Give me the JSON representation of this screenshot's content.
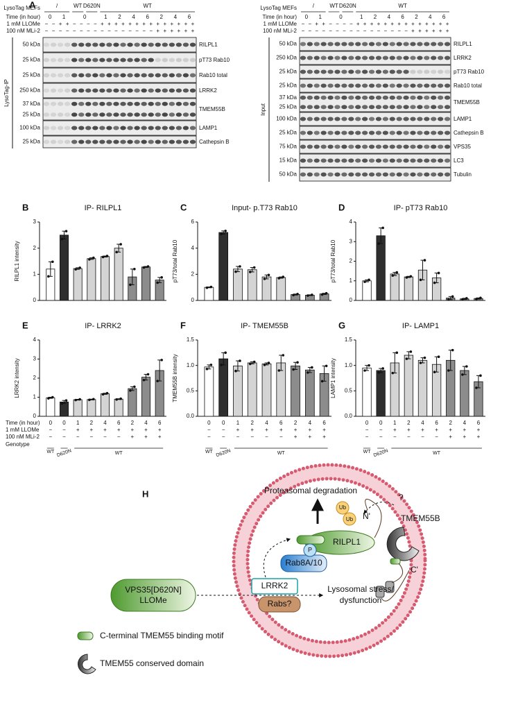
{
  "panel_a": {
    "label": "A",
    "header_labels": [
      "LysoTag MEFs",
      "Time (in hour)",
      "1 mM LLOMe",
      "100 nM MLi-2"
    ],
    "genotypes": [
      "/",
      "WT",
      "D620N",
      "WT"
    ],
    "times": [
      0,
      1,
      0,
      1,
      2,
      4,
      6,
      2,
      4,
      6
    ],
    "llome": [
      "−",
      "−",
      "+",
      "+",
      "−",
      "−",
      "−",
      "−",
      "+",
      "+",
      "+",
      "+",
      "+",
      "+",
      "+",
      "+",
      "+",
      "+",
      "+",
      "+",
      "+",
      "+"
    ],
    "mli2": [
      "−",
      "−",
      "−",
      "−",
      "−",
      "−",
      "−",
      "−",
      "−",
      "−",
      "−",
      "−",
      "−",
      "−",
      "−",
      "−",
      "+",
      "+",
      "+",
      "+",
      "+",
      "+"
    ],
    "left": {
      "side_label": "LysoTag-IP",
      "rows": [
        {
          "kda": [
            "50 kDa"
          ],
          "name": "RILPL1"
        },
        {
          "kda": [
            "25 kDa"
          ],
          "name": "pT73 Rab10"
        },
        {
          "kda": [
            "25 kDa"
          ],
          "name": "Rab10 total"
        },
        {
          "kda": [
            "250 kDa"
          ],
          "name": "LRRK2"
        },
        {
          "kda": [
            "37 kDa",
            "25 kDa"
          ],
          "name": "TMEM55B"
        },
        {
          "kda": [
            "100 kDa"
          ],
          "name": "LAMP1"
        },
        {
          "kda": [
            "25 kDa"
          ],
          "name": "Cathepsin B"
        }
      ]
    },
    "right": {
      "side_label": "Input",
      "rows": [
        {
          "kda": [
            "50 kDa"
          ],
          "name": "RILPL1"
        },
        {
          "kda": [
            "250 kDa"
          ],
          "name": "LRRK2"
        },
        {
          "kda": [
            "25 kDa"
          ],
          "name": "pT73 Rab10"
        },
        {
          "kda": [
            "25 kDa"
          ],
          "name": "Rab10 total"
        },
        {
          "kda": [
            "37 kDa",
            "25 kDa"
          ],
          "name": "TMEM55B"
        },
        {
          "kda": [
            "100 kDa"
          ],
          "name": "LAMP1"
        },
        {
          "kda": [
            "25 kDa"
          ],
          "name": "Cathepsin B"
        },
        {
          "kda": [
            "75 kDa"
          ],
          "name": "VPS35"
        },
        {
          "kda": [
            "15 kDa"
          ],
          "name": "LC3"
        },
        {
          "kda": [
            "50 kDa"
          ],
          "name": "Tubulin"
        }
      ]
    }
  },
  "conditions": {
    "row_labels": [
      "Time (in hour)",
      "1 mM LLOMe",
      "100 nM MLi-2",
      "Genotype"
    ],
    "time": [
      0,
      0,
      1,
      2,
      4,
      6,
      2,
      4,
      6
    ],
    "llome": [
      "−",
      "−",
      "+",
      "+",
      "+",
      "+",
      "+",
      "+",
      "+"
    ],
    "mli2": [
      "−",
      "−",
      "−",
      "−",
      "−",
      "−",
      "+",
      "+",
      "+"
    ],
    "genotype": [
      "WT",
      "D620N",
      "WT"
    ]
  },
  "chart_data": [
    {
      "type": "bar",
      "label": "B",
      "title": "IP- RILPL1",
      "ylabel": "RILPL1 intensity",
      "categories": [
        null,
        null,
        null,
        null,
        null,
        null,
        null,
        null,
        null
      ],
      "values": [
        1.2,
        2.5,
        1.22,
        1.6,
        1.68,
        2.0,
        0.9,
        1.28,
        0.78
      ],
      "errors": [
        0.28,
        0.15,
        0.03,
        0.03,
        0.02,
        0.15,
        0.3,
        0.02,
        0.1
      ],
      "points": [
        [
          0.92,
          1.48
        ],
        [
          2.35,
          2.65
        ],
        [
          1.19,
          1.25
        ],
        [
          1.57,
          1.63
        ],
        [
          1.66,
          1.7
        ],
        [
          1.85,
          2.15
        ],
        [
          0.6,
          1.2
        ],
        [
          1.26,
          1.3
        ],
        [
          0.68,
          0.88
        ]
      ],
      "colors": [
        "#ffffff",
        "#2e2e2e",
        "#d4d4d4",
        "#d4d4d4",
        "#d4d4d4",
        "#d4d4d4",
        "#8c8c8c",
        "#8c8c8c",
        "#8c8c8c"
      ],
      "ylim": [
        0,
        3
      ],
      "yticks": [
        0,
        1,
        2,
        3
      ]
    },
    {
      "type": "bar",
      "label": "C",
      "title": "Input- p.T73 Rab10",
      "ylabel": "pT73/total Rab10",
      "categories": [
        null,
        null,
        null,
        null,
        null,
        null,
        null,
        null,
        null
      ],
      "values": [
        1.0,
        5.2,
        2.4,
        2.35,
        1.8,
        1.75,
        0.45,
        0.4,
        0.5
      ],
      "errors": [
        0.03,
        0.12,
        0.2,
        0.17,
        0.15,
        0.05,
        0.04,
        0.03,
        0.05
      ],
      "points": [
        [
          0.97,
          1.03
        ],
        [
          5.08,
          5.32
        ],
        [
          2.2,
          2.6
        ],
        [
          2.18,
          2.52
        ],
        [
          1.65,
          1.95
        ],
        [
          1.7,
          1.8
        ],
        [
          0.41,
          0.49
        ],
        [
          0.37,
          0.43
        ],
        [
          0.45,
          0.55
        ]
      ],
      "colors": [
        "#ffffff",
        "#2e2e2e",
        "#d4d4d4",
        "#d4d4d4",
        "#d4d4d4",
        "#d4d4d4",
        "#8c8c8c",
        "#8c8c8c",
        "#8c8c8c"
      ],
      "ylim": [
        0,
        6
      ],
      "yticks": [
        0,
        2,
        4,
        6
      ]
    },
    {
      "type": "bar",
      "label": "D",
      "title": "IP- pT73 Rab10",
      "ylabel": "pT73/total Rab10",
      "categories": [
        null,
        null,
        null,
        null,
        null,
        null,
        null,
        null,
        null
      ],
      "values": [
        1.0,
        3.3,
        1.35,
        1.2,
        1.55,
        1.15,
        0.12,
        0.08,
        0.1
      ],
      "errors": [
        0.05,
        0.4,
        0.08,
        0.03,
        0.5,
        0.25,
        0.08,
        0.03,
        0.03
      ],
      "points": [
        [
          0.95,
          1.05
        ],
        [
          2.9,
          3.7
        ],
        [
          1.27,
          1.43
        ],
        [
          1.17,
          1.23
        ],
        [
          1.05,
          2.05
        ],
        [
          0.9,
          1.4
        ],
        [
          0.04,
          0.2
        ],
        [
          0.05,
          0.11
        ],
        [
          0.07,
          0.13
        ]
      ],
      "colors": [
        "#ffffff",
        "#2e2e2e",
        "#d4d4d4",
        "#d4d4d4",
        "#d4d4d4",
        "#d4d4d4",
        "#8c8c8c",
        "#8c8c8c",
        "#8c8c8c"
      ],
      "ylim": [
        0,
        4
      ],
      "yticks": [
        0,
        1,
        2,
        3,
        4
      ]
    },
    {
      "type": "bar",
      "label": "E",
      "title": "IP- LRRK2",
      "ylabel": "LRRK2 intensity",
      "categories": [
        null,
        null,
        null,
        null,
        null,
        null,
        null,
        null,
        null
      ],
      "values": [
        0.97,
        0.75,
        0.87,
        0.88,
        1.18,
        0.9,
        1.45,
        2.05,
        2.4
      ],
      "errors": [
        0.03,
        0.08,
        0.02,
        0.02,
        0.03,
        0.02,
        0.1,
        0.15,
        0.55
      ],
      "points": [
        [
          0.94,
          1.0
        ],
        [
          0.67,
          0.83
        ],
        [
          0.85,
          0.89
        ],
        [
          0.86,
          0.9
        ],
        [
          1.15,
          1.21
        ],
        [
          0.88,
          0.92
        ],
        [
          1.35,
          1.55
        ],
        [
          1.9,
          2.2
        ],
        [
          1.85,
          2.95
        ]
      ],
      "colors": [
        "#ffffff",
        "#2e2e2e",
        "#d4d4d4",
        "#d4d4d4",
        "#d4d4d4",
        "#d4d4d4",
        "#8c8c8c",
        "#8c8c8c",
        "#8c8c8c"
      ],
      "ylim": [
        0,
        4
      ],
      "yticks": [
        0,
        1,
        2,
        3,
        4
      ]
    },
    {
      "type": "bar",
      "label": "F",
      "title": "IP- TMEM55B",
      "ylabel": "TMEM55B intensity",
      "categories": [
        null,
        null,
        null,
        null,
        null,
        null,
        null,
        null,
        null
      ],
      "values": [
        0.97,
        1.13,
        0.99,
        1.05,
        1.03,
        1.05,
        0.99,
        0.91,
        0.84
      ],
      "errors": [
        0.04,
        0.12,
        0.1,
        0.02,
        0.02,
        0.15,
        0.07,
        0.05,
        0.15
      ],
      "points": [
        [
          0.93,
          1.01
        ],
        [
          1.01,
          1.25
        ],
        [
          0.89,
          1.09
        ],
        [
          1.03,
          1.07
        ],
        [
          1.01,
          1.05
        ],
        [
          0.9,
          1.2
        ],
        [
          0.92,
          1.06
        ],
        [
          0.86,
          0.96
        ],
        [
          0.69,
          0.99
        ]
      ],
      "colors": [
        "#ffffff",
        "#2e2e2e",
        "#d4d4d4",
        "#d4d4d4",
        "#d4d4d4",
        "#d4d4d4",
        "#8c8c8c",
        "#8c8c8c",
        "#8c8c8c"
      ],
      "ylim": [
        0,
        1.5
      ],
      "yticks": [
        {
          "value": 0,
          "label": "0.0"
        },
        0.5,
        {
          "value": 1,
          "label": "1.0"
        },
        1.5
      ]
    },
    {
      "type": "bar",
      "label": "G",
      "title": "IP- LAMP1",
      "ylabel": "LAMP1 intensity",
      "categories": [
        null,
        null,
        null,
        null,
        null,
        null,
        null,
        null,
        null
      ],
      "values": [
        0.95,
        0.9,
        1.05,
        1.2,
        1.1,
        1.02,
        1.1,
        0.9,
        0.68
      ],
      "errors": [
        0.05,
        0.04,
        0.2,
        0.07,
        0.05,
        0.15,
        0.2,
        0.08,
        0.12
      ],
      "points": [
        [
          0.9,
          1.0
        ],
        [
          0.86,
          0.94
        ],
        [
          0.85,
          1.25
        ],
        [
          1.13,
          1.27
        ],
        [
          1.05,
          1.15
        ],
        [
          0.87,
          1.17
        ],
        [
          0.9,
          1.3
        ],
        [
          0.82,
          0.98
        ],
        [
          0.56,
          0.8
        ]
      ],
      "colors": [
        "#ffffff",
        "#2e2e2e",
        "#d4d4d4",
        "#d4d4d4",
        "#d4d4d4",
        "#d4d4d4",
        "#8c8c8c",
        "#8c8c8c",
        "#8c8c8c"
      ],
      "ylim": [
        0,
        1.5
      ],
      "yticks": [
        {
          "value": 0,
          "label": "0.0"
        },
        0.5,
        {
          "value": 1,
          "label": "1.0"
        },
        1.5
      ]
    }
  ],
  "panel_h": {
    "label": "H",
    "proteasomal": "Proteasomal degradation",
    "ub": [
      "Ub",
      "Ub"
    ],
    "question": "?",
    "n_term": "N'",
    "tmem55b": "TMEM55B",
    "rilpl1": "RILPL1",
    "phospho": "P",
    "rab": "Rab8A/10",
    "lrrk2": "LRRK2",
    "rabs": "Rabs?",
    "c_term": "C'",
    "trigger": [
      "VPS35[D620N]",
      "LLOMe"
    ],
    "stress": [
      "Lysosomal stress/",
      "dysfunction"
    ],
    "legend": [
      "C-terminal TMEM55 binding motif",
      "TMEM55 conserved domain"
    ]
  }
}
